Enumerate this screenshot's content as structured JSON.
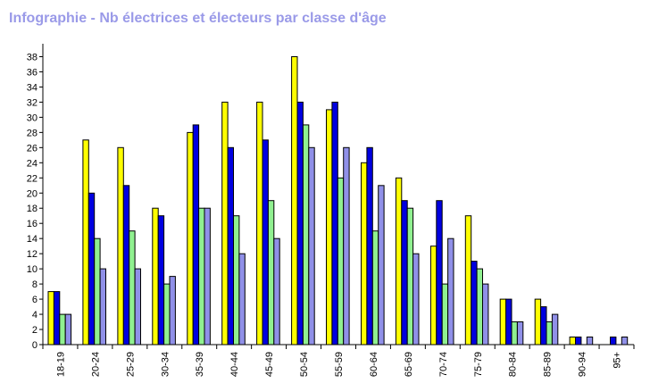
{
  "chart_data": {
    "type": "bar",
    "title": "Infographie - Nb électrices et électeurs par classe d'âge",
    "categories": [
      "18-19",
      "20-24",
      "25-29",
      "30-34",
      "35-39",
      "40-44",
      "45-49",
      "50-54",
      "55-59",
      "60-64",
      "65-69",
      "70-74",
      "75-79",
      "80-84",
      "85-89",
      "90-94",
      "95+"
    ],
    "series": [
      {
        "color": "#ffff00",
        "values": [
          7,
          27,
          26,
          18,
          28,
          32,
          32,
          38,
          31,
          24,
          22,
          13,
          17,
          6,
          6,
          1,
          0
        ]
      },
      {
        "color": "#0000e0",
        "values": [
          7,
          20,
          21,
          17,
          29,
          26,
          27,
          32,
          32,
          26,
          19,
          19,
          11,
          6,
          5,
          1,
          1
        ]
      },
      {
        "color": "#90f090",
        "values": [
          4,
          14,
          15,
          8,
          18,
          17,
          19,
          29,
          22,
          15,
          18,
          8,
          10,
          3,
          3,
          0,
          0
        ]
      },
      {
        "color": "#9090e8",
        "values": [
          4,
          10,
          10,
          9,
          18,
          12,
          14,
          26,
          26,
          21,
          12,
          14,
          8,
          3,
          4,
          1,
          1
        ]
      }
    ],
    "ylim": [
      0,
      39
    ],
    "ytick_step": 2,
    "grid": false,
    "legend": "none"
  }
}
